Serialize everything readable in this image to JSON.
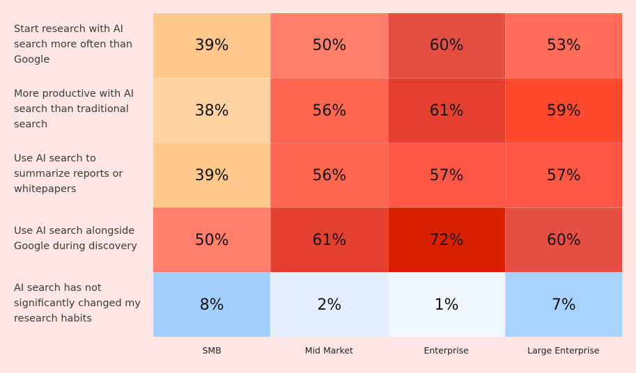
{
  "chart_data": {
    "type": "heatmap",
    "rows": [
      "Start research with AI search more often than Google",
      "More productive with AI search than traditional search",
      "Use AI search to summarize reports or whitepapers",
      "Use AI search alongside Google during discovery",
      "AI search has not significantly changed my research habits"
    ],
    "columns": [
      "SMB",
      "Mid Market",
      "Enterprise",
      "Large Enterprise"
    ],
    "values": [
      [
        39,
        50,
        60,
        53
      ],
      [
        38,
        56,
        61,
        59
      ],
      [
        39,
        56,
        57,
        57
      ],
      [
        50,
        61,
        72,
        60
      ],
      [
        8,
        2,
        1,
        7
      ]
    ],
    "value_suffix": "%",
    "colors": [
      [
        "#fec88c",
        "#ff7e6c",
        "#e54e42",
        "#ff6c5a"
      ],
      [
        "#fed3a2",
        "#ff6650",
        "#e3402f",
        "#ff4a2e"
      ],
      [
        "#fec88c",
        "#ff6650",
        "#ff5745",
        "#ff5745"
      ],
      [
        "#ff7e6c",
        "#e3402f",
        "#d81f00",
        "#e54e42"
      ],
      [
        "#a3cfff",
        "#e3efff",
        "#f2f7ff",
        "#a8d2ff"
      ]
    ],
    "background": "#fde6e4",
    "legend": "none",
    "grid": false
  }
}
